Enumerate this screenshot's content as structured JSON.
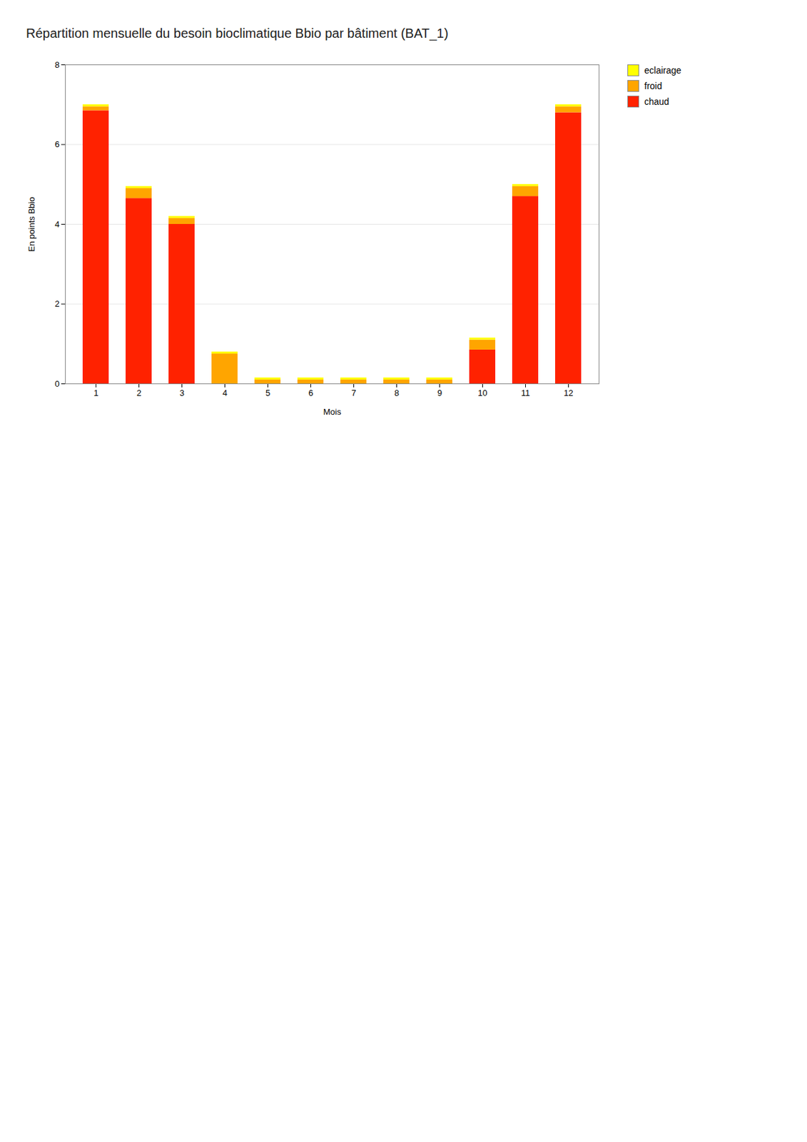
{
  "chart_data": {
    "type": "bar",
    "stacked": true,
    "title": "Répartition mensuelle du besoin bioclimatique Bbio par bâtiment (BAT_1)",
    "x_label": "Mois",
    "y_label": "En points Bbio",
    "categories": [
      "1",
      "2",
      "3",
      "4",
      "5",
      "6",
      "7",
      "8",
      "9",
      "10",
      "11",
      "12"
    ],
    "series": [
      {
        "name": "chaud",
        "color": "#FF2200",
        "values": [
          6.85,
          4.65,
          4.0,
          0.0,
          0.0,
          0.0,
          0.0,
          0.0,
          0.0,
          0.85,
          4.7,
          6.8
        ]
      },
      {
        "name": "froid",
        "color": "#FFA500",
        "values": [
          0.1,
          0.25,
          0.15,
          0.75,
          0.1,
          0.1,
          0.1,
          0.1,
          0.1,
          0.25,
          0.25,
          0.15
        ]
      },
      {
        "name": "eclairage",
        "color": "#FFFF00",
        "values": [
          0.05,
          0.05,
          0.05,
          0.05,
          0.05,
          0.05,
          0.05,
          0.05,
          0.05,
          0.05,
          0.05,
          0.05
        ]
      }
    ],
    "ylim": [
      0,
      8
    ],
    "yticks": [
      0,
      2,
      4,
      6,
      8
    ],
    "grid": true,
    "legend": "right"
  }
}
